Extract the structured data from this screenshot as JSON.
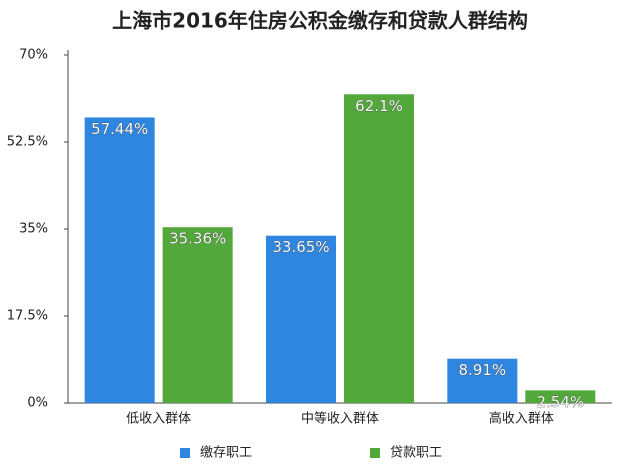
{
  "chart_data": {
    "type": "bar",
    "title": "上海市2016年住房公积金缴存和贷款人群结构",
    "categories": [
      "低收入群体",
      "中等收入群体",
      "高收入群体"
    ],
    "series": [
      {
        "name": "缴存职工",
        "color": "#2f86e0",
        "values": [
          57.44,
          33.65,
          8.91
        ],
        "value_labels": [
          "57.44%",
          "33.65%",
          "8.91%"
        ]
      },
      {
        "name": "贷款职工",
        "color": "#52a83a",
        "values": [
          35.36,
          62.1,
          2.54
        ],
        "value_labels": [
          "35.36%",
          "62.1%",
          "2.54%"
        ]
      }
    ],
    "ylim": [
      0,
      70
    ],
    "yticks": [
      {
        "value": 0,
        "label": "0%"
      },
      {
        "value": 17.5,
        "label": "17.5%"
      },
      {
        "value": 35,
        "label": "35%"
      },
      {
        "value": 52.5,
        "label": "52.5%"
      },
      {
        "value": 70,
        "label": "70%"
      }
    ],
    "grid": false,
    "legend": "bottom"
  }
}
